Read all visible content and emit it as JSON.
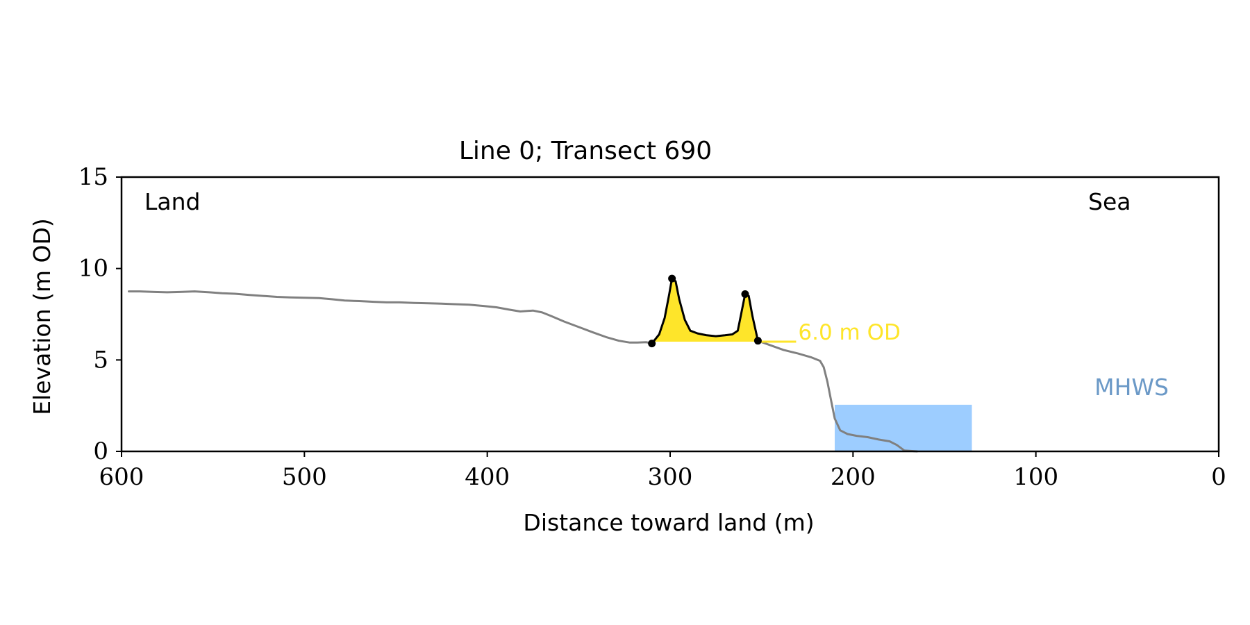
{
  "chart_data": {
    "type": "area",
    "title": "Line 0; Transect 690",
    "xlabel": "Distance toward land (m)",
    "ylabel": "Elevation (m OD)",
    "xlim": [
      600,
      0
    ],
    "ylim": [
      0,
      15
    ],
    "x_ticks": [
      600,
      500,
      400,
      300,
      200,
      100,
      0
    ],
    "y_ticks": [
      0,
      5,
      10,
      15
    ],
    "grid": false,
    "annotations": {
      "land": "Land",
      "sea": "Sea",
      "threshold_label": "6.0 m OD",
      "mhws_label": "MHWS"
    },
    "threshold_m_od": 6.0,
    "mhws_band": {
      "x_from": 210,
      "x_to": 135,
      "y_from": 0,
      "y_to": 2.55
    },
    "profile": [
      [
        596,
        8.75
      ],
      [
        590,
        8.75
      ],
      [
        582,
        8.72
      ],
      [
        575,
        8.7
      ],
      [
        568,
        8.72
      ],
      [
        560,
        8.75
      ],
      [
        552,
        8.7
      ],
      [
        545,
        8.65
      ],
      [
        538,
        8.62
      ],
      [
        530,
        8.55
      ],
      [
        522,
        8.5
      ],
      [
        515,
        8.45
      ],
      [
        508,
        8.42
      ],
      [
        500,
        8.4
      ],
      [
        492,
        8.38
      ],
      [
        485,
        8.32
      ],
      [
        478,
        8.25
      ],
      [
        470,
        8.22
      ],
      [
        462,
        8.18
      ],
      [
        455,
        8.15
      ],
      [
        448,
        8.15
      ],
      [
        440,
        8.12
      ],
      [
        432,
        8.1
      ],
      [
        425,
        8.08
      ],
      [
        418,
        8.05
      ],
      [
        410,
        8.02
      ],
      [
        402,
        7.95
      ],
      [
        395,
        7.88
      ],
      [
        388,
        7.75
      ],
      [
        382,
        7.65
      ],
      [
        375,
        7.7
      ],
      [
        370,
        7.6
      ],
      [
        365,
        7.4
      ],
      [
        358,
        7.1
      ],
      [
        350,
        6.8
      ],
      [
        342,
        6.5
      ],
      [
        335,
        6.25
      ],
      [
        328,
        6.05
      ],
      [
        322,
        5.95
      ],
      [
        318,
        5.95
      ],
      [
        313,
        5.97
      ],
      [
        310,
        5.9
      ]
    ],
    "dune": [
      [
        310,
        5.9
      ],
      [
        306,
        6.4
      ],
      [
        303,
        7.3
      ],
      [
        300.5,
        8.6
      ],
      [
        299,
        9.45
      ],
      [
        297,
        9.3
      ],
      [
        295,
        8.3
      ],
      [
        292,
        7.2
      ],
      [
        289,
        6.6
      ],
      [
        285,
        6.45
      ],
      [
        280,
        6.35
      ],
      [
        275,
        6.3
      ],
      [
        270,
        6.35
      ],
      [
        266,
        6.4
      ],
      [
        263,
        6.6
      ],
      [
        261,
        7.6
      ],
      [
        259,
        8.6
      ],
      [
        257,
        8.5
      ],
      [
        255,
        7.4
      ],
      [
        253,
        6.5
      ],
      [
        252,
        6.05
      ]
    ],
    "dune_points": [
      [
        310,
        5.9
      ],
      [
        299,
        9.45
      ],
      [
        259,
        8.6
      ],
      [
        252,
        6.05
      ]
    ],
    "seaward_profile": [
      [
        252,
        6.05
      ],
      [
        245,
        5.8
      ],
      [
        238,
        5.55
      ],
      [
        230,
        5.35
      ],
      [
        223,
        5.15
      ],
      [
        218,
        4.95
      ],
      [
        216,
        4.6
      ],
      [
        214,
        3.8
      ],
      [
        212,
        2.8
      ],
      [
        210,
        1.8
      ],
      [
        207,
        1.15
      ],
      [
        203,
        0.95
      ],
      [
        198,
        0.85
      ],
      [
        192,
        0.78
      ],
      [
        186,
        0.65
      ],
      [
        180,
        0.55
      ],
      [
        176,
        0.35
      ],
      [
        172,
        0.05
      ],
      [
        165,
        0.0
      ]
    ],
    "colors": {
      "profile": "#808080",
      "dune_fill": "#fee52a",
      "dune_outline": "#000000",
      "threshold_line": "#fee52a",
      "mhws_fill": "#9dcdff",
      "mhws_label": "#6b99c7"
    }
  }
}
